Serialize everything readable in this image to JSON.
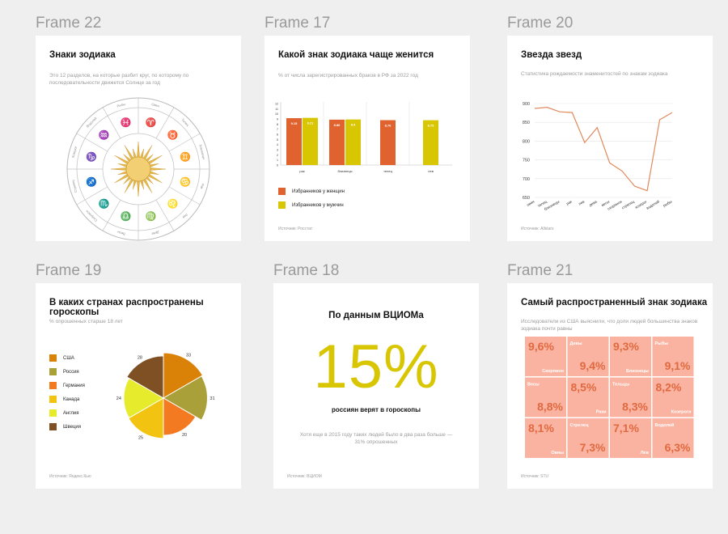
{
  "frames": {
    "f22": {
      "label": "Frame 22",
      "title": "Знаки зодиака",
      "subtitle": "Это 12 разделов, на которые разбит круг, по которому по последовательности движется Солнце за год"
    },
    "f17": {
      "label": "Frame 17",
      "title": "Какой знак зодиака чаще женится",
      "subtitle": "% от числа зарегистрированных браков в РФ за 2022 год",
      "source": "Источник: Росстат",
      "legend": [
        "Избранников у женщин",
        "Избранников у мужчин"
      ]
    },
    "f20": {
      "label": "Frame 20",
      "title": "Звезда звезд",
      "subtitle": "Статистика рождаемости знаменитостей по знакам зодиака",
      "source": "Источник: Allstars"
    },
    "f19": {
      "label": "Frame 19",
      "title": "В каких странах распространены гороскопы",
      "subtitle": "% опрошенных старше 18 лет",
      "source": "Источник: Яндекс.Кью"
    },
    "f18": {
      "label": "Frame 18",
      "title": "По данным ВЦИОМа",
      "big_number": "15%",
      "caption": "россиян верят в гороскопы",
      "note": "Хотя еще в 2015 году таких людей было в два раза больше — 31% опрошенных",
      "source": "Источник: ВЦИОМ"
    },
    "f21": {
      "label": "Frame 21",
      "title": "Самый распространенный знак зодиака",
      "subtitle": "Исследователи из США выяснили, что доли людей большинства знаков зодиака почти равны",
      "source": "Источник: STU"
    }
  },
  "chart_data": [
    {
      "type": "bar",
      "title": "Какой знак зодиака чаще женится",
      "categories": [
        "рак",
        "близнецы",
        "телец",
        "лев"
      ],
      "ylim": [
        0,
        12
      ],
      "yticks": [
        "0",
        "1",
        "2",
        "3",
        "4",
        "5",
        "6",
        "7",
        "8",
        "9",
        "10",
        "11",
        "12"
      ],
      "grid": false,
      "legend_position": "bottom-left",
      "series": [
        {
          "name": "Избранников у женщин",
          "color": "#E0622F",
          "values": [
            9.15,
            8.86,
            8.76,
            null
          ],
          "labels": [
            "9.15",
            "8.86",
            "8.76",
            ""
          ]
        },
        {
          "name": "Избранников у мужчин",
          "color": "#D8C602",
          "values": [
            9.21,
            8.9,
            null,
            8.75
          ],
          "labels": [
            "9.21",
            "8.9",
            "",
            "8.75"
          ]
        }
      ]
    },
    {
      "type": "line",
      "title": "Звезда звезд",
      "categories": [
        "овен",
        "телец",
        "близнецы",
        "рак",
        "лев",
        "дева",
        "весы",
        "скорпион",
        "стрелец",
        "козерог",
        "водолей",
        "рыбы"
      ],
      "values": [
        887,
        890,
        878,
        876,
        796,
        836,
        742,
        720,
        680,
        668,
        857,
        876
      ],
      "ylim": [
        650,
        900
      ],
      "yticks": [
        650,
        700,
        750,
        800,
        850,
        900
      ],
      "color": "#E08A5E",
      "grid": true
    },
    {
      "type": "pie",
      "title": "В каких странах распространены гороскопы",
      "categories": [
        "США",
        "Россия",
        "Германия",
        "Канада",
        "Англия",
        "Швеция"
      ],
      "values": [
        33,
        31,
        20,
        25,
        24,
        28
      ],
      "colors": [
        "#DA8208",
        "#A9A03A",
        "#F37A20",
        "#F2C411",
        "#E6EC2C",
        "#7E5024"
      ],
      "legend_position": "left"
    },
    {
      "type": "heatmap",
      "title": "Самый распространенный знак зодиака",
      "cells": [
        {
          "value": "9,6%",
          "sign": "Скорпион"
        },
        {
          "value": "9,4%",
          "sign": "Девы"
        },
        {
          "value": "9,3%",
          "sign": "Близнецы"
        },
        {
          "value": "9,1%",
          "sign": "Рыбы"
        },
        {
          "value": "8,8%",
          "sign": "Весы"
        },
        {
          "value": "8,5%",
          "sign": "Раки"
        },
        {
          "value": "8,3%",
          "sign": "Тельцы"
        },
        {
          "value": "8,2%",
          "sign": "Козероги"
        },
        {
          "value": "8,1%",
          "sign": "Овны"
        },
        {
          "value": "7,3%",
          "sign": "Стрелец"
        },
        {
          "value": "7,1%",
          "sign": "Лев"
        },
        {
          "value": "6,3%",
          "sign": "Водолей"
        }
      ],
      "fill_color": "#FBB3A1",
      "text_color": "#E06A40"
    }
  ],
  "zodiac_wheel": {
    "signs": [
      "Овен",
      "Телец",
      "Близнецы",
      "Рак",
      "Лев",
      "Дева",
      "Весы",
      "Скорпион",
      "Стрелец",
      "Козерог",
      "Водолей",
      "Рыбы"
    ],
    "glyphs": [
      "♈",
      "♉",
      "♊",
      "♋",
      "♌",
      "♍",
      "♎",
      "♏",
      "♐",
      "♑",
      "♒",
      "♓"
    ],
    "sun_color": "#E6B84C"
  },
  "colors": {
    "bg": "#efefef",
    "accent_yellow": "#D8C602"
  }
}
